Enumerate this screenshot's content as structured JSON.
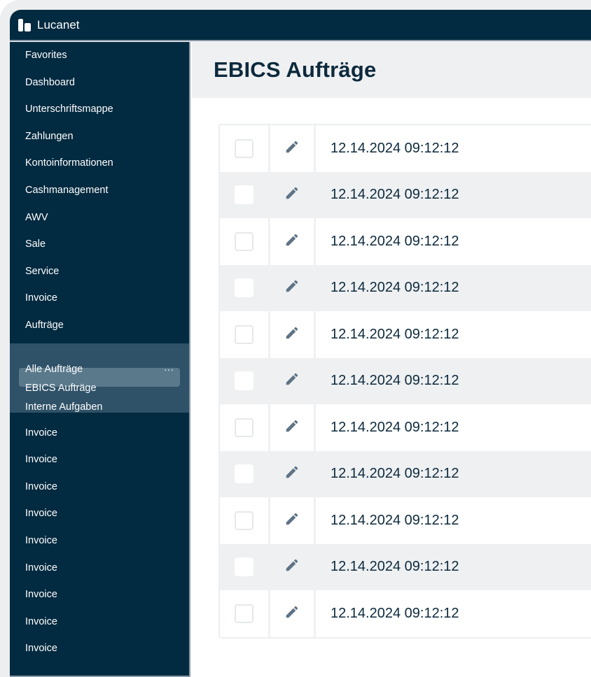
{
  "app": {
    "brand": "Lucanet"
  },
  "sidebar": {
    "items_top": [
      "Favorites",
      "Dashboard",
      "Unterschriftsmappe",
      "Zahlungen",
      "Kontoinformationen",
      "Cashmanagement",
      "AWV",
      "Sale",
      "Service",
      "Invoice",
      "Aufträge"
    ],
    "group": {
      "items": [
        "Alle Aufträge",
        "EBICS Aufträge",
        "Interne Aufgaben"
      ],
      "more_label": "···",
      "selected": "EBICS Aufträge"
    },
    "items_bottom": [
      "Invoice",
      "Invoice",
      "Invoice",
      "Invoice",
      "Invoice",
      "Invoice",
      "Invoice",
      "Invoice",
      "Invoice"
    ]
  },
  "main": {
    "title": "EBICS Aufträge",
    "rows": [
      "12.14.2024 09:12:12",
      "12.14.2024 09:12:12",
      "12.14.2024 09:12:12",
      "12.14.2024 09:12:12",
      "12.14.2024 09:12:12",
      "12.14.2024 09:12:12",
      "12.14.2024 09:12:12",
      "12.14.2024 09:12:12",
      "12.14.2024 09:12:12",
      "12.14.2024 09:12:12",
      "12.14.2024 09:12:12"
    ]
  },
  "colors": {
    "sidebar": "#022a40",
    "accent_group": "#2f5268",
    "selected": "#5a7a8c",
    "icon": "#5f7385"
  }
}
